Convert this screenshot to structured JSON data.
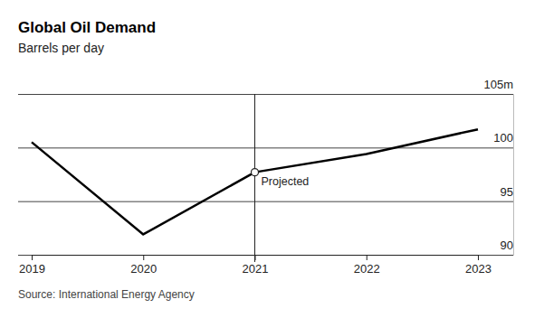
{
  "chart_data": {
    "type": "line",
    "title": "Global Oil Demand",
    "subtitle": "Barrels per day",
    "source": "Source: International Energy Agency",
    "categories": [
      "2019",
      "2020",
      "2021",
      "2022",
      "2023"
    ],
    "values": [
      100.5,
      91.9,
      97.7,
      99.4,
      101.7
    ],
    "color": "#000000",
    "ylim": [
      90,
      105
    ],
    "yticks": [
      90,
      95,
      100,
      {
        "value": 105,
        "label": "105m"
      }
    ],
    "grid": true,
    "annotations": [
      {
        "text": "Projected",
        "x": "2021"
      }
    ]
  }
}
